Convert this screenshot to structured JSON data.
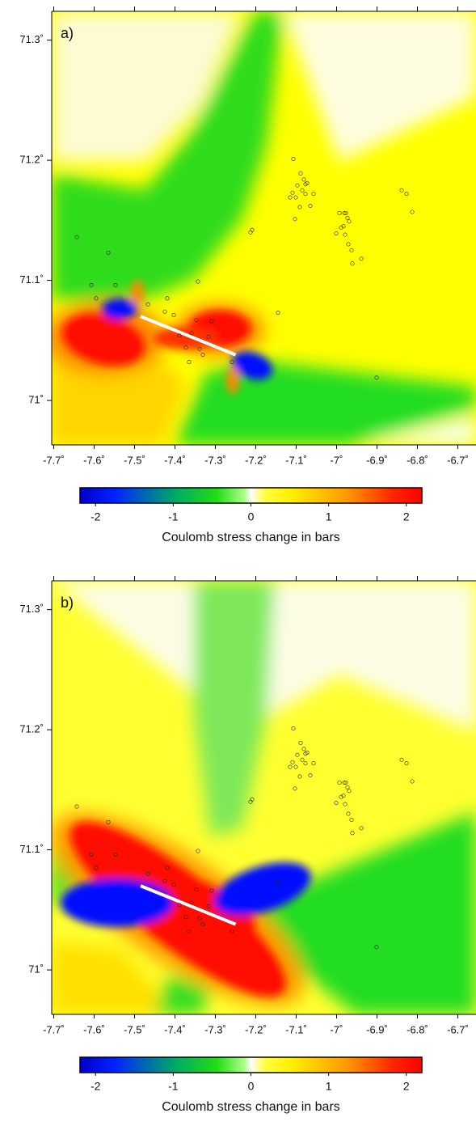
{
  "chart_data": [
    {
      "type": "map",
      "panel_label": "a)",
      "xlim": [
        -7.705,
        -6.655
      ],
      "ylim": [
        70.963,
        71.324
      ],
      "xticks": [
        {
          "value": -7.7,
          "label": "-7.7˚"
        },
        {
          "value": -7.6,
          "label": "-7.6˚"
        },
        {
          "value": -7.5,
          "label": "-7.5˚"
        },
        {
          "value": -7.4,
          "label": "-7.4˚"
        },
        {
          "value": -7.3,
          "label": "-7.3˚"
        },
        {
          "value": -7.2,
          "label": "-7.2˚"
        },
        {
          "value": -7.1,
          "label": "-7.1˚"
        },
        {
          "value": -7,
          "label": "-7˚"
        },
        {
          "value": -6.9,
          "label": "-6.9˚"
        },
        {
          "value": -6.8,
          "label": "-6.8˚"
        },
        {
          "value": -6.7,
          "label": "-6.7˚"
        }
      ],
      "yticks": [
        {
          "value": 71,
          "label": "71˚"
        },
        {
          "value": 71.1,
          "label": "71.1˚"
        },
        {
          "value": 71.2,
          "label": "71.2˚"
        },
        {
          "value": 71.3,
          "label": "71.3˚"
        }
      ],
      "fault": {
        "x": [
          -7.485,
          -7.25
        ],
        "y": [
          71.07,
          71.038
        ]
      },
      "events": {
        "x": [
          -7.643,
          -7.565,
          -7.607,
          -7.595,
          -7.547,
          -7.107,
          -7.089,
          -7.081,
          -7.077,
          -7.097,
          -7.073,
          -7.085,
          -7.109,
          -7.101,
          -7.077,
          -7.057,
          -7.065,
          -7.091,
          -7.103,
          -7.115,
          -6.981,
          -6.993,
          -6.977,
          -6.989,
          -7.001,
          -6.979,
          -6.983,
          -6.969,
          -6.973,
          -6.971,
          -6.963,
          -6.961,
          -6.939,
          -6.839,
          -6.827,
          -6.813,
          -7.209,
          -7.213,
          -7.343,
          -7.419,
          -7.467,
          -7.145,
          -7.425,
          -7.403,
          -7.389,
          -7.373,
          -7.359,
          -7.347,
          -7.317,
          -7.339,
          -7.331,
          -7.309,
          -7.259,
          -7.365,
          -6.901
        ],
        "y": [
          71.136,
          71.123,
          71.096,
          71.085,
          71.096,
          71.201,
          71.189,
          71.184,
          71.18,
          71.179,
          71.181,
          71.175,
          71.173,
          71.169,
          71.172,
          71.172,
          71.162,
          71.161,
          71.151,
          71.169,
          71.156,
          71.156,
          71.156,
          71.144,
          71.139,
          71.138,
          71.145,
          71.149,
          71.152,
          71.13,
          71.125,
          71.114,
          71.118,
          71.175,
          71.172,
          71.157,
          71.142,
          71.14,
          71.099,
          71.085,
          71.08,
          71.073,
          71.074,
          71.071,
          71.054,
          71.044,
          71.056,
          71.067,
          71.053,
          71.043,
          71.038,
          71.066,
          71.032,
          71.032,
          71.019
        ]
      },
      "colorbar": {
        "lim": [
          -2.2,
          2.2
        ],
        "ticks": [
          -2,
          -1,
          0,
          1,
          2
        ],
        "label": "Coulomb stress change in bars"
      }
    },
    {
      "type": "map",
      "panel_label": "b)",
      "xlim": [
        -7.705,
        -6.655
      ],
      "ylim": [
        70.963,
        71.324
      ],
      "xticks": [
        {
          "value": -7.7,
          "label": "-7.7˚"
        },
        {
          "value": -7.6,
          "label": "-7.6˚"
        },
        {
          "value": -7.5,
          "label": "-7.5˚"
        },
        {
          "value": -7.4,
          "label": "-7.4˚"
        },
        {
          "value": -7.3,
          "label": "-7.3˚"
        },
        {
          "value": -7.2,
          "label": "-7.2˚"
        },
        {
          "value": -7.1,
          "label": "-7.1˚"
        },
        {
          "value": -7,
          "label": "-7˚"
        },
        {
          "value": -6.9,
          "label": "-6.9˚"
        },
        {
          "value": -6.8,
          "label": "-6.8˚"
        },
        {
          "value": -6.7,
          "label": "-6.7˚"
        }
      ],
      "yticks": [
        {
          "value": 71,
          "label": "71˚"
        },
        {
          "value": 71.1,
          "label": "71.1˚"
        },
        {
          "value": 71.2,
          "label": "71.2˚"
        },
        {
          "value": 71.3,
          "label": "71.3˚"
        }
      ],
      "fault": {
        "x": [
          -7.485,
          -7.25
        ],
        "y": [
          71.07,
          71.038
        ]
      },
      "events": {
        "x": [
          -7.643,
          -7.565,
          -7.607,
          -7.595,
          -7.547,
          -7.107,
          -7.089,
          -7.081,
          -7.077,
          -7.097,
          -7.073,
          -7.085,
          -7.109,
          -7.101,
          -7.077,
          -7.057,
          -7.065,
          -7.091,
          -7.103,
          -7.115,
          -6.981,
          -6.993,
          -6.977,
          -6.989,
          -7.001,
          -6.979,
          -6.983,
          -6.969,
          -6.973,
          -6.971,
          -6.963,
          -6.961,
          -6.939,
          -6.839,
          -6.827,
          -6.813,
          -7.209,
          -7.213,
          -7.343,
          -7.419,
          -7.467,
          -7.145,
          -7.425,
          -7.403,
          -7.389,
          -7.373,
          -7.359,
          -7.347,
          -7.317,
          -7.339,
          -7.331,
          -7.309,
          -7.259,
          -7.365,
          -6.901
        ],
        "y": [
          71.136,
          71.123,
          71.096,
          71.085,
          71.096,
          71.201,
          71.189,
          71.184,
          71.18,
          71.179,
          71.181,
          71.175,
          71.173,
          71.169,
          71.172,
          71.172,
          71.162,
          71.161,
          71.151,
          71.169,
          71.156,
          71.156,
          71.156,
          71.144,
          71.139,
          71.138,
          71.145,
          71.149,
          71.152,
          71.13,
          71.125,
          71.114,
          71.118,
          71.175,
          71.172,
          71.157,
          71.142,
          71.14,
          71.099,
          71.085,
          71.08,
          71.073,
          71.074,
          71.071,
          71.054,
          71.044,
          71.056,
          71.067,
          71.053,
          71.043,
          71.038,
          71.066,
          71.032,
          71.032,
          71.019
        ]
      },
      "colorbar": {
        "lim": [
          -2.2,
          2.2
        ],
        "ticks": [
          -2,
          -1,
          0,
          1,
          2
        ],
        "label": "Coulomb stress change in bars"
      }
    }
  ]
}
